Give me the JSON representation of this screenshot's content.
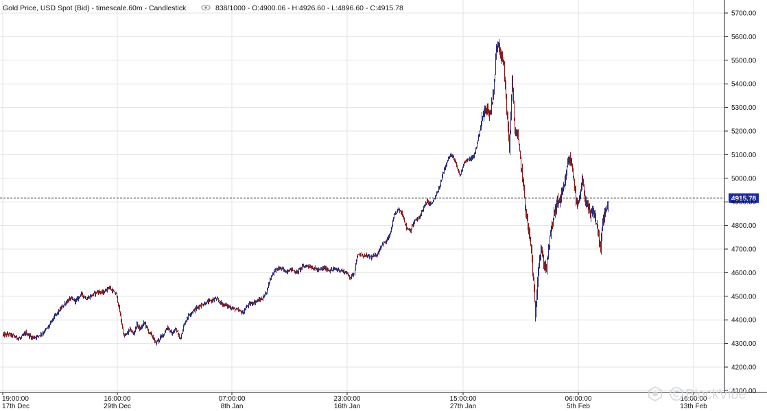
{
  "title": {
    "text": "Gold Price, USD Spot (Bid) - timescale.60m - Candlestick",
    "eye_icon": "eye-icon",
    "ohlc_text": "838/1000 - O:4900.06 - H:4926.60 - L:4896.60 - C:4915.78"
  },
  "watermark": {
    "text": "BlockVibe",
    "icon": "blockvibe-logo-icon"
  },
  "colors": {
    "up": "#2a2d7a",
    "down": "#8a1d1d",
    "badge": "#1c2aa0",
    "grid": "#e3e3e3"
  },
  "chart_data": {
    "type": "candlestick",
    "title": "Gold Price, USD Spot (Bid) - timescale.60m - Candlestick",
    "ylim": [
      4150,
      5750
    ],
    "y_ticks": [
      "5700.00",
      "5600.00",
      "5500.00",
      "5400.00",
      "5300.00",
      "5200.00",
      "5100.00",
      "5000.00",
      "4900.00",
      "4800.00",
      "4700.00",
      "4600.00",
      "4500.00",
      "4400.00",
      "4300.00",
      "4200.00",
      "4100.00"
    ],
    "x_ticks": [
      {
        "time": "19:00:00",
        "date": "17th Dec"
      },
      {
        "time": "16:00:00",
        "date": "29th Dec"
      },
      {
        "time": "07:00:00",
        "date": "8th Jan"
      },
      {
        "time": "23:00:00",
        "date": "16th Jan"
      },
      {
        "time": "15:00:00",
        "date": "27th Jan"
      },
      {
        "time": "06:00:00",
        "date": "5th Feb"
      },
      {
        "time": "16:00:00",
        "date": "13th Feb"
      }
    ],
    "last_price": 4915.78,
    "last_price_label": "4915.78",
    "grid": true,
    "price_path": [
      [
        0,
        4335
      ],
      [
        8,
        4340
      ],
      [
        16,
        4330
      ],
      [
        25,
        4320
      ],
      [
        33,
        4345
      ],
      [
        42,
        4325
      ],
      [
        50,
        4330
      ],
      [
        58,
        4345
      ],
      [
        66,
        4370
      ],
      [
        74,
        4410
      ],
      [
        82,
        4440
      ],
      [
        90,
        4470
      ],
      [
        98,
        4490
      ],
      [
        106,
        4480
      ],
      [
        114,
        4510
      ],
      [
        122,
        4490
      ],
      [
        130,
        4505
      ],
      [
        138,
        4520
      ],
      [
        146,
        4515
      ],
      [
        154,
        4540
      ],
      [
        160,
        4520
      ],
      [
        165,
        4510
      ],
      [
        169,
        4450
      ],
      [
        172,
        4400
      ],
      [
        176,
        4330
      ],
      [
        180,
        4340
      ],
      [
        185,
        4360
      ],
      [
        190,
        4340
      ],
      [
        195,
        4380
      ],
      [
        200,
        4360
      ],
      [
        206,
        4390
      ],
      [
        212,
        4350
      ],
      [
        218,
        4330
      ],
      [
        222,
        4300
      ],
      [
        228,
        4320
      ],
      [
        234,
        4340
      ],
      [
        240,
        4370
      ],
      [
        246,
        4340
      ],
      [
        252,
        4360
      ],
      [
        258,
        4320
      ],
      [
        264,
        4380
      ],
      [
        270,
        4420
      ],
      [
        278,
        4440
      ],
      [
        286,
        4460
      ],
      [
        294,
        4470
      ],
      [
        302,
        4480
      ],
      [
        310,
        4490
      ],
      [
        318,
        4470
      ],
      [
        326,
        4460
      ],
      [
        334,
        4450
      ],
      [
        342,
        4440
      ],
      [
        350,
        4430
      ],
      [
        356,
        4460
      ],
      [
        362,
        4470
      ],
      [
        370,
        4480
      ],
      [
        378,
        4490
      ],
      [
        384,
        4520
      ],
      [
        390,
        4580
      ],
      [
        396,
        4610
      ],
      [
        404,
        4620
      ],
      [
        412,
        4605
      ],
      [
        420,
        4615
      ],
      [
        428,
        4600
      ],
      [
        436,
        4625
      ],
      [
        444,
        4630
      ],
      [
        452,
        4620
      ],
      [
        460,
        4610
      ],
      [
        468,
        4620
      ],
      [
        476,
        4610
      ],
      [
        484,
        4615
      ],
      [
        492,
        4610
      ],
      [
        500,
        4600
      ],
      [
        506,
        4580
      ],
      [
        512,
        4600
      ],
      [
        516,
        4670
      ],
      [
        522,
        4675
      ],
      [
        530,
        4670
      ],
      [
        538,
        4665
      ],
      [
        546,
        4680
      ],
      [
        552,
        4720
      ],
      [
        558,
        4730
      ],
      [
        564,
        4760
      ],
      [
        570,
        4840
      ],
      [
        576,
        4870
      ],
      [
        582,
        4850
      ],
      [
        588,
        4790
      ],
      [
        594,
        4780
      ],
      [
        600,
        4820
      ],
      [
        606,
        4830
      ],
      [
        612,
        4870
      ],
      [
        618,
        4900
      ],
      [
        624,
        4890
      ],
      [
        630,
        4920
      ],
      [
        636,
        4960
      ],
      [
        642,
        5030
      ],
      [
        648,
        5080
      ],
      [
        654,
        5100
      ],
      [
        660,
        5060
      ],
      [
        666,
        5010
      ],
      [
        672,
        5070
      ],
      [
        680,
        5080
      ],
      [
        686,
        5090
      ],
      [
        692,
        5160
      ],
      [
        698,
        5250
      ],
      [
        704,
        5300
      ],
      [
        710,
        5270
      ],
      [
        716,
        5400
      ],
      [
        719,
        5550
      ],
      [
        722,
        5580
      ],
      [
        726,
        5520
      ],
      [
        730,
        5480
      ],
      [
        734,
        5300
      ],
      [
        738,
        5120
      ],
      [
        742,
        5420
      ],
      [
        746,
        5200
      ],
      [
        750,
        5180
      ],
      [
        754,
        5080
      ],
      [
        758,
        4980
      ],
      [
        762,
        4860
      ],
      [
        766,
        4780
      ],
      [
        770,
        4700
      ],
      [
        773,
        4560
      ],
      [
        776,
        4420
      ],
      [
        780,
        4620
      ],
      [
        784,
        4700
      ],
      [
        788,
        4640
      ],
      [
        792,
        4620
      ],
      [
        796,
        4720
      ],
      [
        800,
        4800
      ],
      [
        804,
        4860
      ],
      [
        808,
        4900
      ],
      [
        812,
        4910
      ],
      [
        818,
        4960
      ],
      [
        824,
        5080
      ],
      [
        828,
        5070
      ],
      [
        832,
        5000
      ],
      [
        836,
        4880
      ],
      [
        840,
        4900
      ],
      [
        844,
        4990
      ],
      [
        848,
        4920
      ],
      [
        852,
        4880
      ],
      [
        856,
        4840
      ],
      [
        860,
        4860
      ],
      [
        864,
        4820
      ],
      [
        868,
        4760
      ],
      [
        871,
        4690
      ],
      [
        874,
        4820
      ],
      [
        878,
        4860
      ],
      [
        882,
        4880
      ],
      [
        886,
        4915.78
      ]
    ]
  }
}
